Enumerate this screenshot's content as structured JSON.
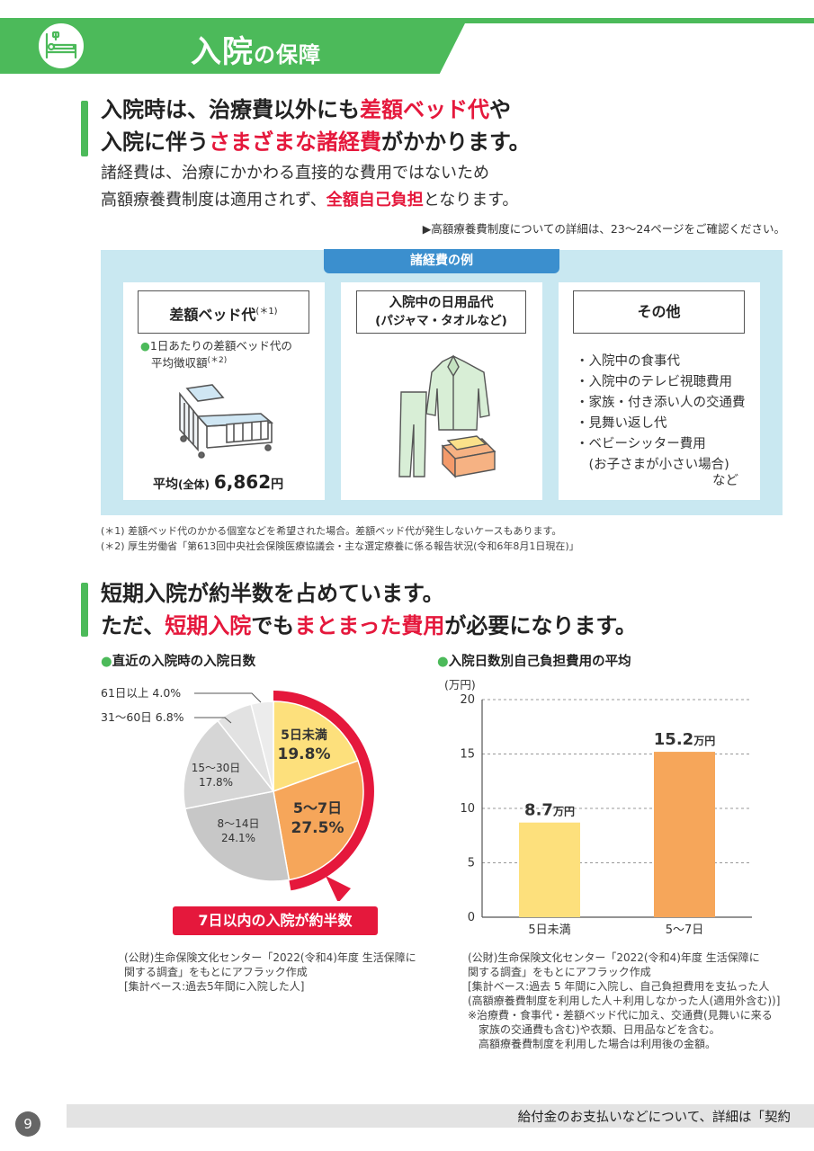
{
  "header": {
    "title_main": "入院",
    "title_sub": "の保障",
    "icon": "hospital-bed-icon",
    "accent_color": "#4cba5a"
  },
  "section1": {
    "heading_line1_a": "入院時は、治療費以外にも",
    "heading_line1_red": "差額ベッド代",
    "heading_line1_b": "や",
    "heading_line2_a": "入院に伴う",
    "heading_line2_red": "さまざまな諸経費",
    "heading_line2_b": "がかかります。",
    "body_line1": "諸経費は、治療にかかわる直接的な費用ではないため",
    "body_line2_a": "高額療養費制度は適用されず、",
    "body_line2_red": "全額自己負担",
    "body_line2_b": "となります。",
    "ref_note": "▶高額療養費制度についての詳細は、23〜24ページをご確認ください。"
  },
  "panel": {
    "tag": "諸経費の例",
    "card1": {
      "title": "差額ベッド代",
      "title_sup": "(＊1)",
      "note_line1": "1日あたりの差額ベッド代の",
      "note_line2": "平均徴収額",
      "note_sup": "(＊2)",
      "avg_label": "平均",
      "avg_scope": "(全体)",
      "avg_value": "6,862",
      "avg_unit": "円"
    },
    "card2": {
      "title_line1": "入院中の日用品代",
      "title_line2": "(パジャマ・タオルなど)"
    },
    "card3": {
      "title": "その他",
      "items": [
        "・入院中の食事代",
        "・入院中のテレビ視聴費用",
        "・家族・付き添い人の交通費",
        "・見舞い返し代",
        "・ベビーシッター費用",
        "　(お子さまが小さい場合)"
      ],
      "etc": "など"
    }
  },
  "footnotes": [
    "(＊1) 差額ベッド代のかかる個室などを希望された場合。差額ベッド代が発生しないケースもあります。",
    "(＊2) 厚生労働省「第613回中央社会保険医療協議会・主な選定療養に係る報告状況(令和6年8月1日現在)」"
  ],
  "section2": {
    "heading_line1": "短期入院が約半数を占めています。",
    "heading_line2_a": "ただ、",
    "heading_line2_red1": "短期入院",
    "heading_line2_b": "でも",
    "heading_line2_red2": "まとまった費用",
    "heading_line2_c": "が必要になります。"
  },
  "pie": {
    "label": "直近の入院時の入院日数",
    "slices": [
      {
        "label": "5日未満",
        "value": "19.8%"
      },
      {
        "label": "5〜7日",
        "value": "27.5%"
      },
      {
        "label": "8〜14日",
        "value": "24.1%"
      },
      {
        "label": "15〜30日",
        "value": "17.8%"
      },
      {
        "label": "31〜60日",
        "value": "6.8%"
      },
      {
        "label": "61日以上",
        "value": "4.0%"
      }
    ],
    "badge": "7日以内の入院が約半数",
    "source_lines": [
      "(公財)生命保険文化センター「2022(令和4)年度 生活保障に",
      "関する調査」をもとにアフラック作成",
      "[集計ベース:過去5年間に入院した人]"
    ]
  },
  "chart_data": {
    "type": "bar",
    "title": "入院日数別自己負担費用の平均",
    "ylabel": "(万円)",
    "categories": [
      "5日未満",
      "5〜7日"
    ],
    "values": [
      8.7,
      15.2
    ],
    "value_labels": [
      "8.7",
      "15.2"
    ],
    "value_unit": "万円",
    "ylim": [
      0,
      20
    ],
    "yticks": [
      "0",
      "5",
      "10",
      "15",
      "20"
    ],
    "colors": [
      "#fde07c",
      "#f6a65a"
    ],
    "grid": true
  },
  "bar_source_lines": [
    "(公財)生命保険文化センター「2022(令和4)年度 生活保障に",
    "関する調査」をもとにアフラック作成",
    "[集計ベース:過去 5 年間に入院し、自己負担費用を支払った人",
    "(高額療養費制度を利用した人＋利用しなかった人(適用外含む))]",
    "※治療費・食事代・差額ベッド代に加え、交通費(見舞いに来る",
    "　家族の交通費も含む)や衣類、日用品などを含む。",
    "　高額療養費制度を利用した場合は利用後の金額。"
  ],
  "footer": {
    "page_number": "9",
    "text": "給付金のお支払いなどについて、詳細は「契約"
  }
}
